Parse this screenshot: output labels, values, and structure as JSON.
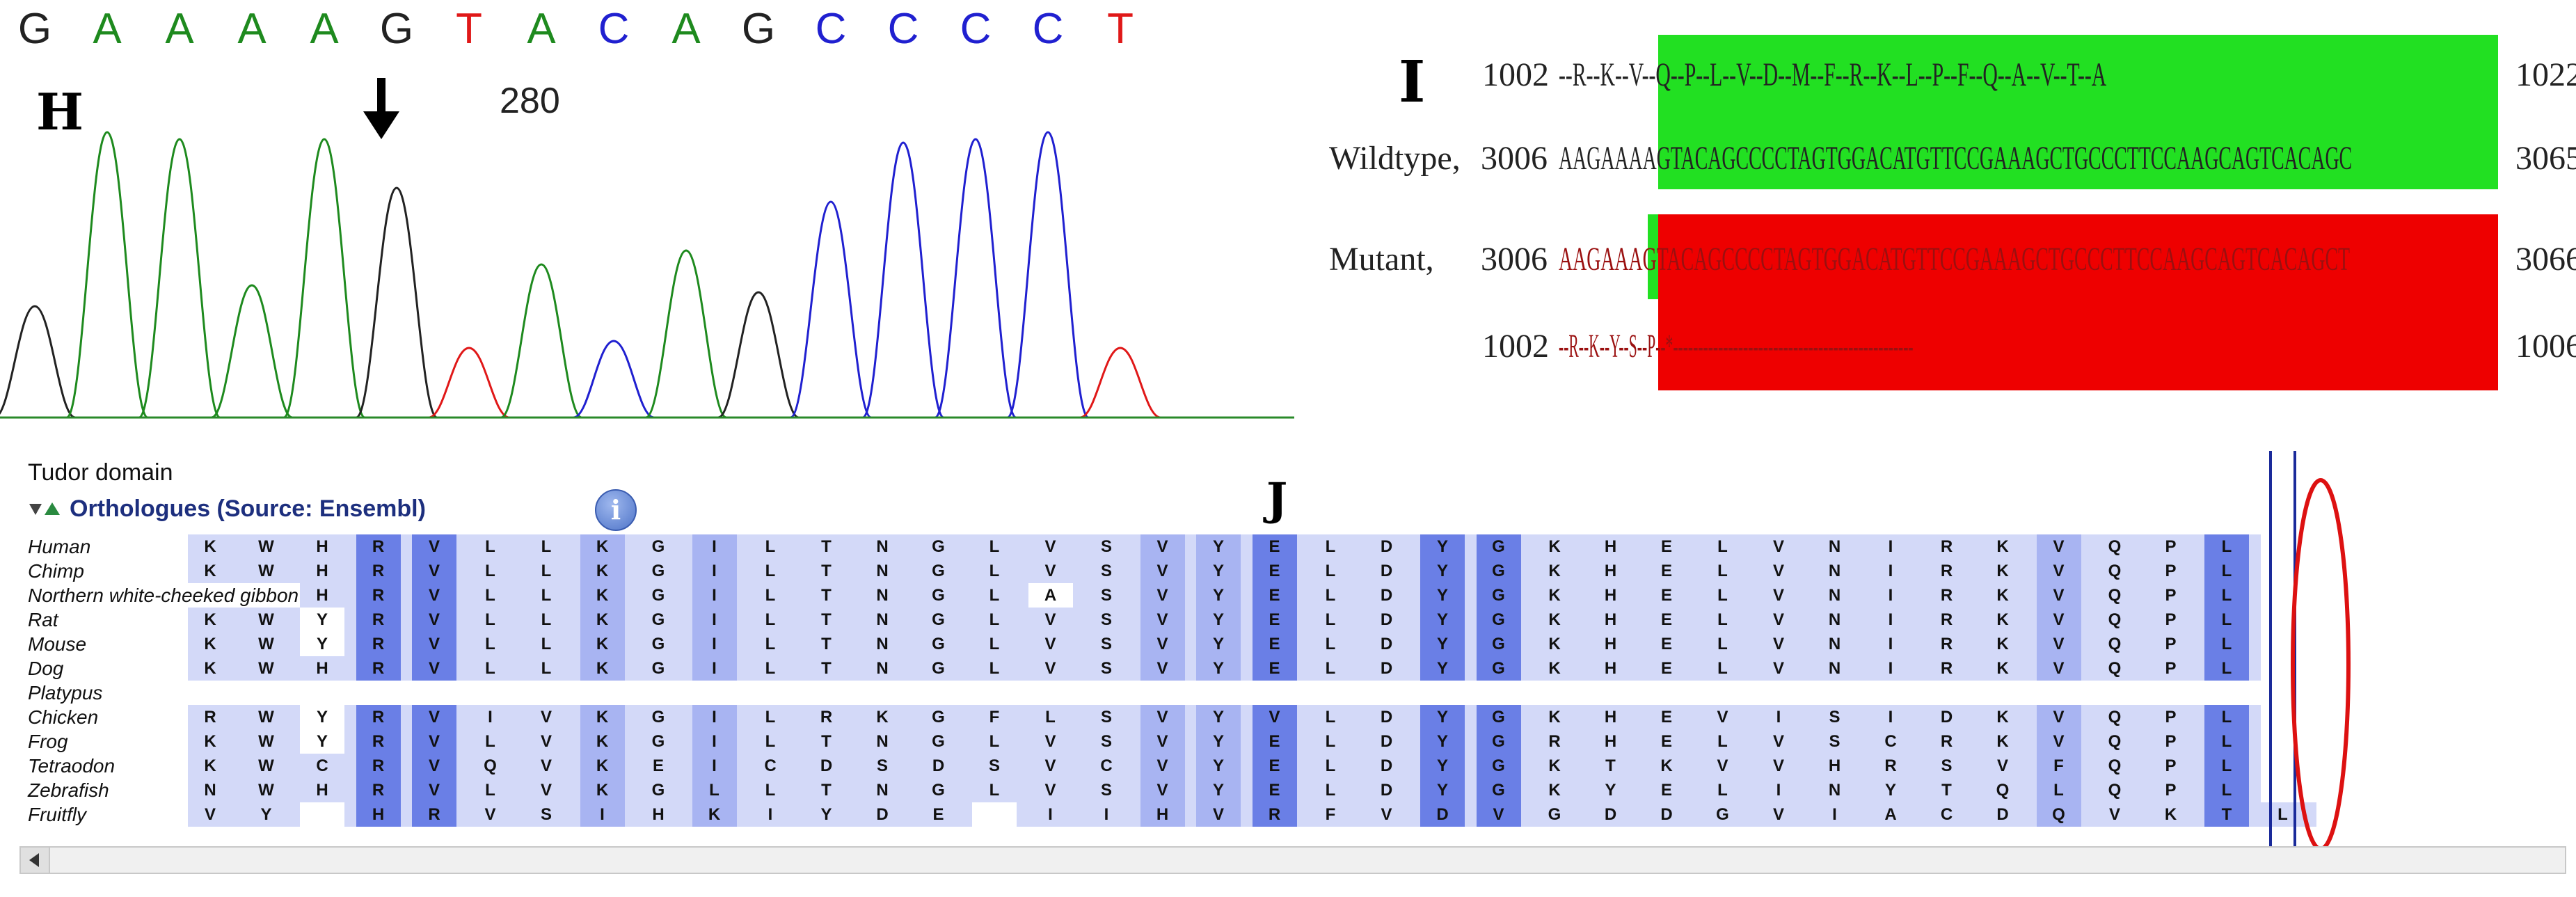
{
  "panel_h": {
    "letter": "H",
    "bases": [
      "G",
      "A",
      "A",
      "A",
      "A",
      "G",
      "T",
      "A",
      "C",
      "A",
      "G",
      "C",
      "C",
      "C",
      "C",
      "T"
    ],
    "position_label": "280",
    "colors": {
      "A": "#1e8a1e",
      "G": "#222222",
      "T": "#e01818",
      "C": "#2020d0"
    },
    "arrow_icon": "down-arrow-icon"
  },
  "panel_i": {
    "letter": "I",
    "rows": [
      {
        "label": "",
        "start": "1002",
        "seq": "--R--K--V--Q--P--L--V--D--M--F--R--K--L--P--F--Q--A--V--T--A",
        "end": "1022"
      },
      {
        "label": "Wildtype,",
        "start": "3006",
        "seq": "AAGAAAAGTACAGCCCCTAGTGGACATGTTCCGAAAGCTGCCCTTCCAAGCAGTCACAGC",
        "end": "3065"
      },
      {
        "label": "Mutant,",
        "start": "3006",
        "seq": "AAGAAAGTACAGCCCCTAGTGGACATGTTCCGAAAGCTGCCCTTCCAAGCAGTCACAGCT",
        "end": "3066"
      },
      {
        "label": "",
        "start": "1002",
        "seq": "--R--K--Y--S--P--*------------------------------------------------",
        "end": "1006"
      }
    ],
    "green": "#22e022",
    "red": "#ee0000"
  },
  "panel_j": {
    "letter": "J",
    "domain_title": "Tudor domain",
    "orthologues_title": "Orthologues (Source: Ensembl)",
    "info_icon": "info-icon",
    "species": [
      {
        "name": "Human",
        "seq": "KWHRVLLKGILTNGLVSVYELDYGKHELVNIRKVQPL"
      },
      {
        "name": "Chimp",
        "seq": "KWHRVLLKGILTNGLVSVYELDYGKHELVNIRKVQPL"
      },
      {
        "name": "Northern white-cheeked gibbon",
        "seq": "KWHRVLLKGILTNGLASVYELDYGKHELVNIRKVQPL"
      },
      {
        "name": "Rat",
        "seq": "KWYRVLLKGILTNGLVSVYELDYGKHELVNIRKVQPL"
      },
      {
        "name": "Mouse",
        "seq": "KWYRVLLKGILTNGLVSVYELDYGKHELVNIRKVQPL"
      },
      {
        "name": "Dog",
        "seq": "KWHRVLLKGILTNGLVSVYELDYGKHELVNIRKVQPL"
      },
      {
        "name": "Platypus",
        "seq": ""
      },
      {
        "name": "Chicken",
        "seq": "RWYRVIVKGILRKGFLSVYVLDYGKHEVISIDKVQPL"
      },
      {
        "name": "Frog",
        "seq": "KWYRVLVKGILTNGLVSVYELDYGRHELVSCRKVQPL"
      },
      {
        "name": "Tetraodon",
        "seq": "KWCRVQVKEICDSDSVCVYELDYGKTKVVHRSVFQPL"
      },
      {
        "name": "Zebrafish",
        "seq": "NWHRVLVKGLLTNGLVSVYELDYGKYELINYTQLQPL"
      },
      {
        "name": "Fruitfly",
        "seq": "VY HRVSIHKIYDE IIHVRFVDVGDDGVIACDQVKTL"
      }
    ],
    "colors": {
      "dark": "#6a7fe6",
      "mid": "#a8b4f2",
      "light": "#d3d9f8",
      "none": "#ffffff",
      "frame": "#1a2a9a",
      "oval": "#dd1111"
    }
  }
}
